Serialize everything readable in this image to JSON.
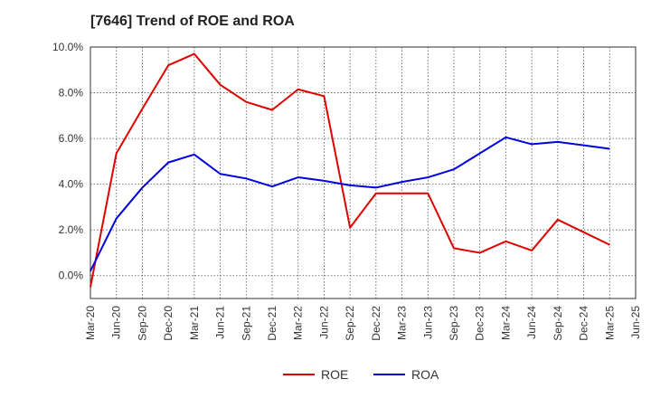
{
  "chart_data": {
    "type": "line",
    "title": "[7646]  Trend of ROE and ROA",
    "x": [
      "Mar-20",
      "Jun-20",
      "Sep-20",
      "Dec-20",
      "Mar-21",
      "Jun-21",
      "Sep-21",
      "Dec-21",
      "Mar-22",
      "Jun-22",
      "Sep-22",
      "Dec-22",
      "Mar-23",
      "Jun-23",
      "Sep-23",
      "Dec-23",
      "Mar-24",
      "Jun-24",
      "Sep-24",
      "Dec-24",
      "Mar-25",
      "Jun-25"
    ],
    "ylim": [
      -1.0,
      10.0
    ],
    "yticks": [
      0,
      2,
      4,
      6,
      8,
      10
    ],
    "ytick_labels": [
      "0.0%",
      "2.0%",
      "4.0%",
      "6.0%",
      "8.0%",
      "10.0%"
    ],
    "grid": true,
    "legend_position": "bottom",
    "series": [
      {
        "name": "ROE",
        "color": "#e00000",
        "values": [
          -0.5,
          5.35,
          7.3,
          9.2,
          9.7,
          8.35,
          7.6,
          7.25,
          8.15,
          7.85,
          2.1,
          3.6,
          3.6,
          3.6,
          1.2,
          1.0,
          1.5,
          1.1,
          2.45,
          1.9,
          1.35,
          null
        ]
      },
      {
        "name": "ROA",
        "color": "#0000e0",
        "values": [
          0.2,
          2.5,
          3.85,
          4.95,
          5.3,
          4.45,
          4.25,
          3.9,
          4.3,
          4.15,
          3.95,
          3.85,
          4.1,
          4.3,
          4.65,
          5.35,
          6.05,
          5.75,
          5.85,
          5.7,
          5.55,
          null
        ]
      }
    ]
  }
}
